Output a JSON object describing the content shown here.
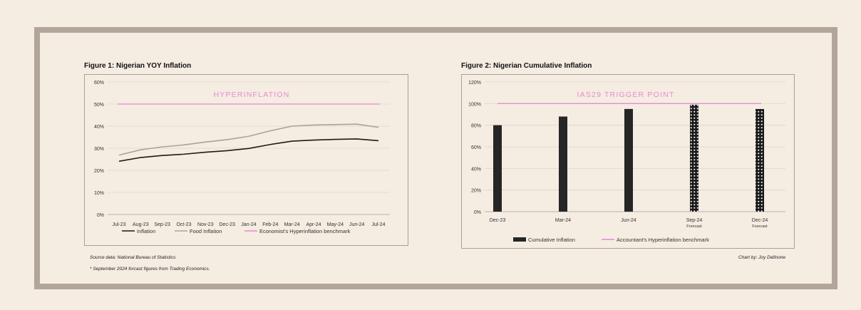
{
  "figure1": {
    "title": "Figure 1: Nigerian YOY Inflation",
    "annotation": "HYPERINFLATION",
    "legend": [
      "Inflation",
      "Food Inflation",
      "Economist's Hyperinflation benchmark"
    ]
  },
  "figure2": {
    "title": "Figure 2:  Nigerian Cumulative Inflation",
    "annotation": "IAS29 TRIGGER POINT",
    "legend": [
      "Cumulative Inflation",
      "Accountant's Hyperinflation benchmark"
    ]
  },
  "notes": {
    "source": "Source data: National Bureau of Statistics",
    "forecast": "* September 2024 forcast figures from Trading Economics.",
    "credit": "Chart by: Joy Dafinone"
  },
  "colors": {
    "inflation": "#1f1a17",
    "food": "#a9a39d",
    "benchmark": "#e889d2",
    "bar": "#262626",
    "grid": "#dcd6ce"
  },
  "chart_data": [
    {
      "type": "line",
      "title": "Figure 1: Nigerian YOY Inflation",
      "categories": [
        "Jul-23",
        "Aug-23",
        "Sep-23",
        "Oct-23",
        "Nov-23",
        "Dec-23",
        "Jan-24",
        "Feb-24",
        "Mar-24",
        "Apr-24",
        "May-24",
        "Jun-24",
        "Jul-24"
      ],
      "series": [
        {
          "name": "Inflation",
          "values": [
            24.1,
            25.8,
            26.7,
            27.3,
            28.2,
            28.9,
            29.9,
            31.7,
            33.2,
            33.7,
            34.0,
            34.2,
            33.4
          ]
        },
        {
          "name": "Food Inflation",
          "values": [
            26.9,
            29.3,
            30.6,
            31.5,
            32.8,
            33.9,
            35.4,
            37.9,
            40.0,
            40.5,
            40.7,
            40.9,
            39.5
          ]
        },
        {
          "name": "Economist's Hyperinflation benchmark",
          "values": [
            50,
            50,
            50,
            50,
            50,
            50,
            50,
            50,
            50,
            50,
            50,
            50,
            50
          ]
        }
      ],
      "yticks": [
        "0%",
        "10%",
        "20%",
        "30%",
        "40%",
        "50%",
        "60%"
      ],
      "ylim": [
        0,
        60
      ],
      "grid": true,
      "legend": "bottom"
    },
    {
      "type": "bar",
      "title": "Figure 2:  Nigerian Cumulative Inflation",
      "categories": [
        "Dec-23",
        "Mar-24",
        "Jun-24",
        "Sep-24",
        "Dec-24"
      ],
      "category_sublabels": [
        "",
        "",
        "",
        "Forecast",
        "Forecast"
      ],
      "series": [
        {
          "name": "Cumulative Inflation",
          "values": [
            80,
            88,
            95,
            99,
            95
          ],
          "forecast": [
            false,
            false,
            false,
            true,
            true
          ]
        },
        {
          "name": "Accountant's Hyperinflation benchmark",
          "values": [
            100,
            100,
            100,
            100,
            100
          ]
        }
      ],
      "yticks": [
        "0%",
        "20%",
        "40%",
        "60%",
        "80%",
        "100%",
        "120%"
      ],
      "ylim": [
        0,
        120
      ],
      "grid": true,
      "legend": "bottom"
    }
  ]
}
